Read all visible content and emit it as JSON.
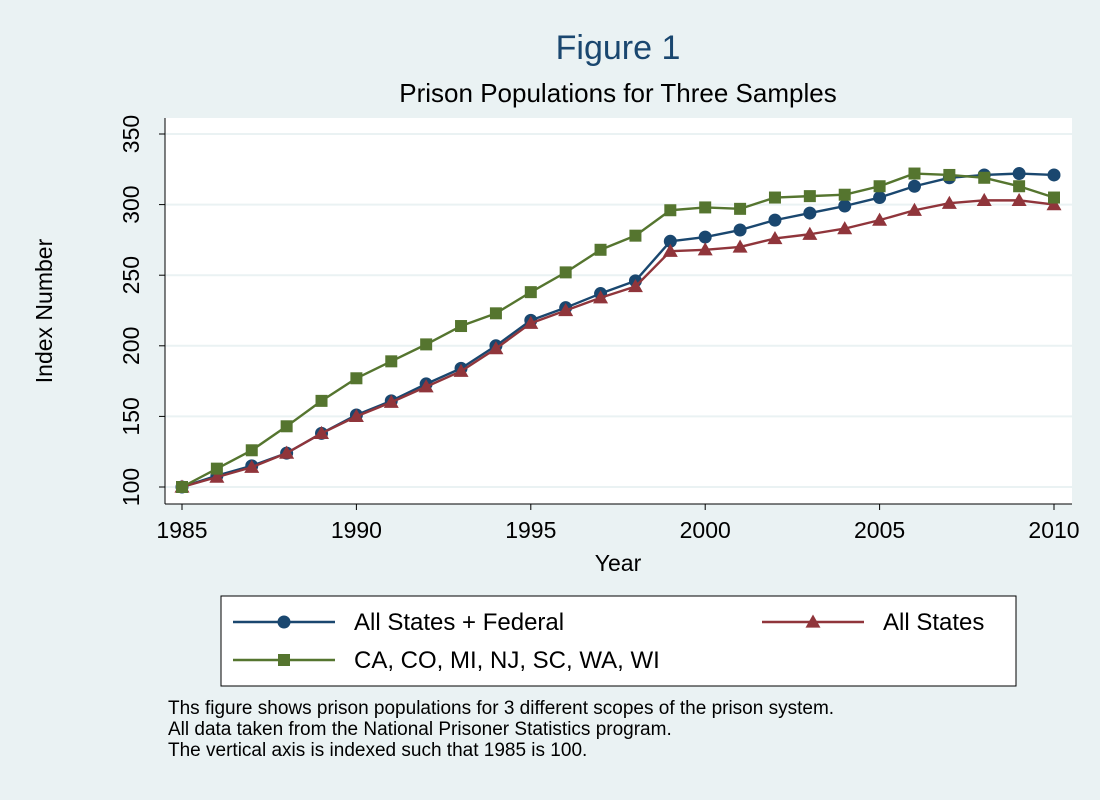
{
  "chart_data": {
    "type": "line",
    "title": "Figure 1",
    "subtitle": "Prison Populations for Three Samples",
    "xlabel": "Year",
    "ylabel": "Index Number",
    "xlim": [
      1985,
      2010
    ],
    "ylim": [
      100,
      350
    ],
    "x_ticks": [
      1985,
      1990,
      1995,
      2000,
      2005,
      2010
    ],
    "y_ticks": [
      100,
      150,
      200,
      250,
      300,
      350
    ],
    "grid": true,
    "legend_position": "bottom",
    "x": [
      1985,
      1986,
      1987,
      1988,
      1989,
      1990,
      1991,
      1992,
      1993,
      1994,
      1995,
      1996,
      1997,
      1998,
      1999,
      2000,
      2001,
      2002,
      2003,
      2004,
      2005,
      2006,
      2007,
      2008,
      2009,
      2010
    ],
    "series": [
      {
        "name": "All States + Federal",
        "color": "#1a476f",
        "marker": "circle",
        "values": [
          100,
          108,
          115,
          124,
          138,
          151,
          161,
          173,
          184,
          200,
          218,
          227,
          237,
          246,
          274,
          277,
          282,
          289,
          294,
          299,
          305,
          313,
          319,
          321,
          322,
          321
        ]
      },
      {
        "name": "All States",
        "color": "#90353b",
        "marker": "triangle",
        "values": [
          100,
          107,
          114,
          124,
          138,
          150,
          160,
          171,
          182,
          198,
          216,
          225,
          234,
          242,
          267,
          268,
          270,
          276,
          279,
          283,
          289,
          296,
          301,
          303,
          303,
          300
        ]
      },
      {
        "name": "CA, CO, MI, NJ, SC, WA, WI",
        "color": "#55752f",
        "marker": "square",
        "values": [
          100,
          113,
          126,
          143,
          161,
          177,
          189,
          201,
          214,
          223,
          238,
          252,
          268,
          278,
          296,
          298,
          297,
          305,
          306,
          307,
          313,
          322,
          321,
          319,
          313,
          305
        ]
      }
    ]
  },
  "notes": [
    "Ths figure shows prison populations for 3 different scopes of the prison system.",
    "All data taken from the National Prisoner Statistics program.",
    "The vertical axis is indexed such that 1985 is 100."
  ]
}
